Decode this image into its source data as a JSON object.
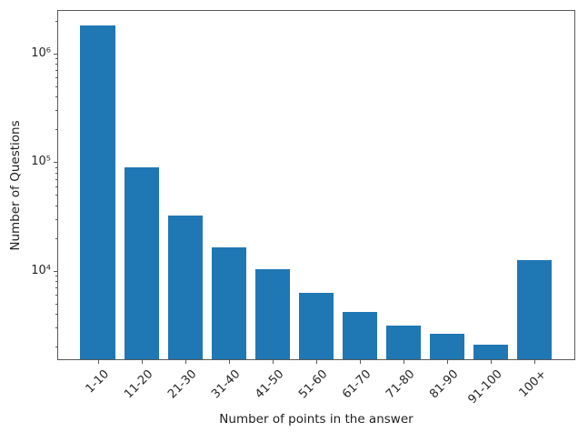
{
  "chart_data": {
    "type": "bar",
    "title": "",
    "xlabel": "Number of points in the answer",
    "ylabel": "Number of Questions",
    "categories": [
      "1-10",
      "11-20",
      "21-30",
      "31-40",
      "41-50",
      "51-60",
      "61-70",
      "71-80",
      "81-90",
      "91-100",
      "100+"
    ],
    "values": [
      1800000,
      90000,
      32000,
      16500,
      10300,
      6200,
      4200,
      3100,
      2600,
      2100,
      12500
    ],
    "series_color": "#1f77b4",
    "yscale": "log",
    "ylim": [
      1500,
      2500000
    ],
    "xlim": [
      -0.93,
      10.93
    ],
    "bar_width_units": 0.8,
    "y_ticks": [
      {
        "exp": 4,
        "label": "10⁴"
      },
      {
        "exp": 5,
        "label": "10⁵"
      },
      {
        "exp": 6,
        "label": "10⁶"
      }
    ],
    "grid": false,
    "legend": null,
    "x_tick_rotation_deg": 45
  },
  "figure": {
    "background": "#ffffff",
    "spine_color": "#5a5a5a"
  }
}
